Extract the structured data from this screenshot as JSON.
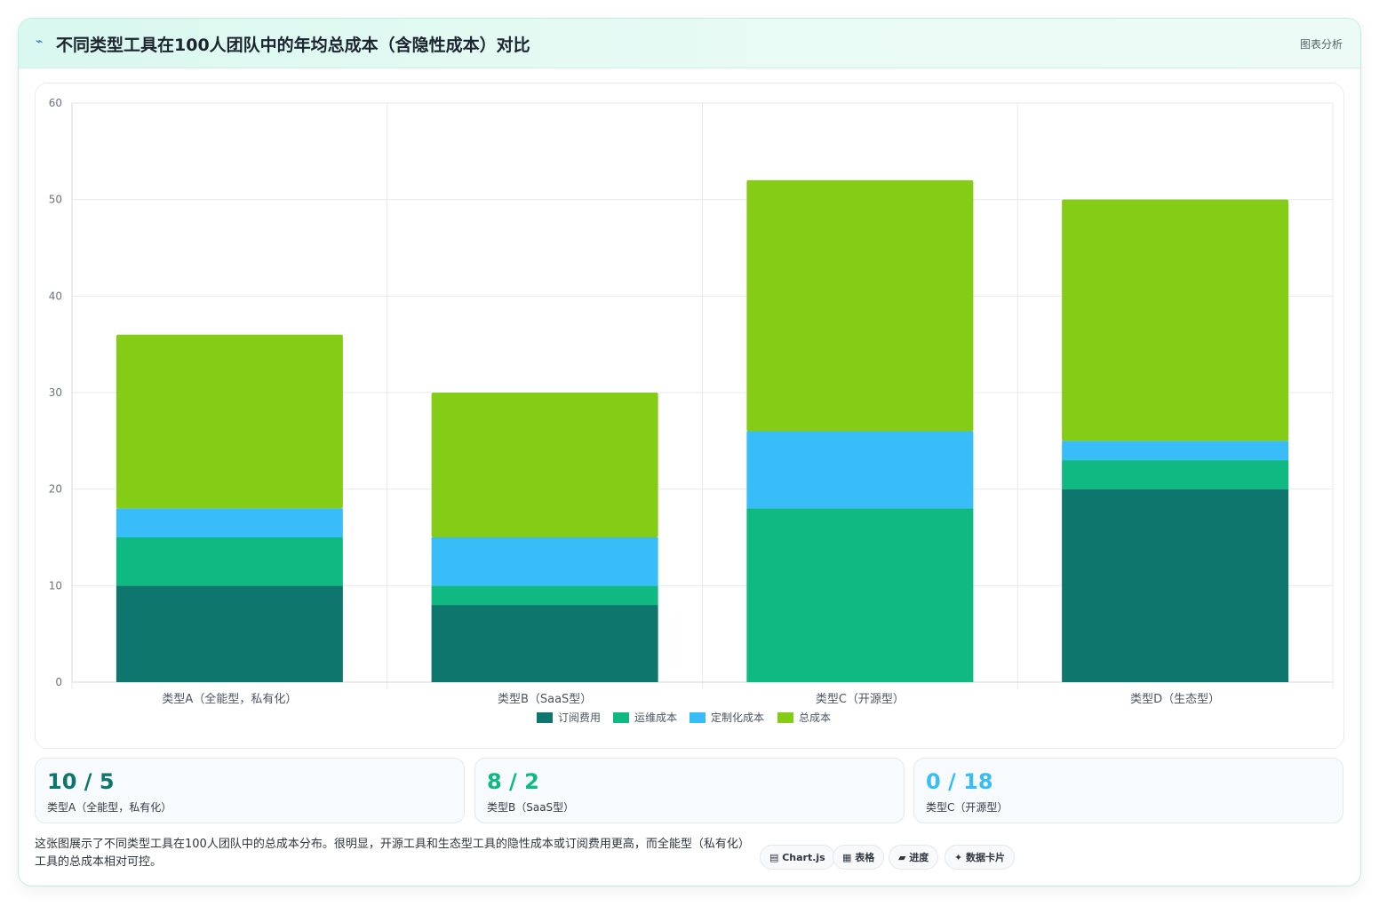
{
  "header": {
    "icon": "⌁",
    "title": "不同类型工具在100人团队中的年均总成本（含隐性成本）对比",
    "tag": "图表分析"
  },
  "chart_data": {
    "type": "bar",
    "stacked": true,
    "categories": [
      "类型A（全能型，私有化）",
      "类型B（SaaS型）",
      "类型C（开源型）",
      "类型D（生态型）"
    ],
    "series": [
      {
        "name": "订阅费用",
        "color": "#0f766e",
        "values": [
          10,
          8,
          0,
          20
        ]
      },
      {
        "name": "运维成本",
        "color": "#10b981",
        "values": [
          5,
          2,
          18,
          3
        ]
      },
      {
        "name": "定制化成本",
        "color": "#38bdf8",
        "values": [
          3,
          5,
          8,
          2
        ]
      },
      {
        "name": "总成本",
        "color": "#84cc16",
        "values": [
          18,
          15,
          26,
          25
        ]
      }
    ],
    "ylim": [
      0,
      60
    ],
    "yticks": [
      0,
      10,
      20,
      30,
      40,
      50,
      60
    ],
    "grid": true,
    "legend": "bottom"
  },
  "stats": [
    {
      "value": "10 / 5",
      "label": "类型A（全能型，私有化）",
      "color": "#0f766e"
    },
    {
      "value": "8 / 2",
      "label": "类型B（SaaS型）",
      "color": "#10b981"
    },
    {
      "value": "0 / 18",
      "label": "类型C（开源型）",
      "color": "#38bdf8"
    }
  ],
  "summary": "这张图展示了不同类型工具在100人团队中的总成本分布。很明显，开源工具和生态型工具的隐性成本或订阅费用更高，而全能型（私有化）工具的总成本相对可控。",
  "chips": [
    {
      "label": "▤ Chart.js"
    },
    {
      "label": "▦ 表格"
    },
    {
      "label": "▰ 进度"
    },
    {
      "label": "✦ 数据卡片"
    }
  ]
}
